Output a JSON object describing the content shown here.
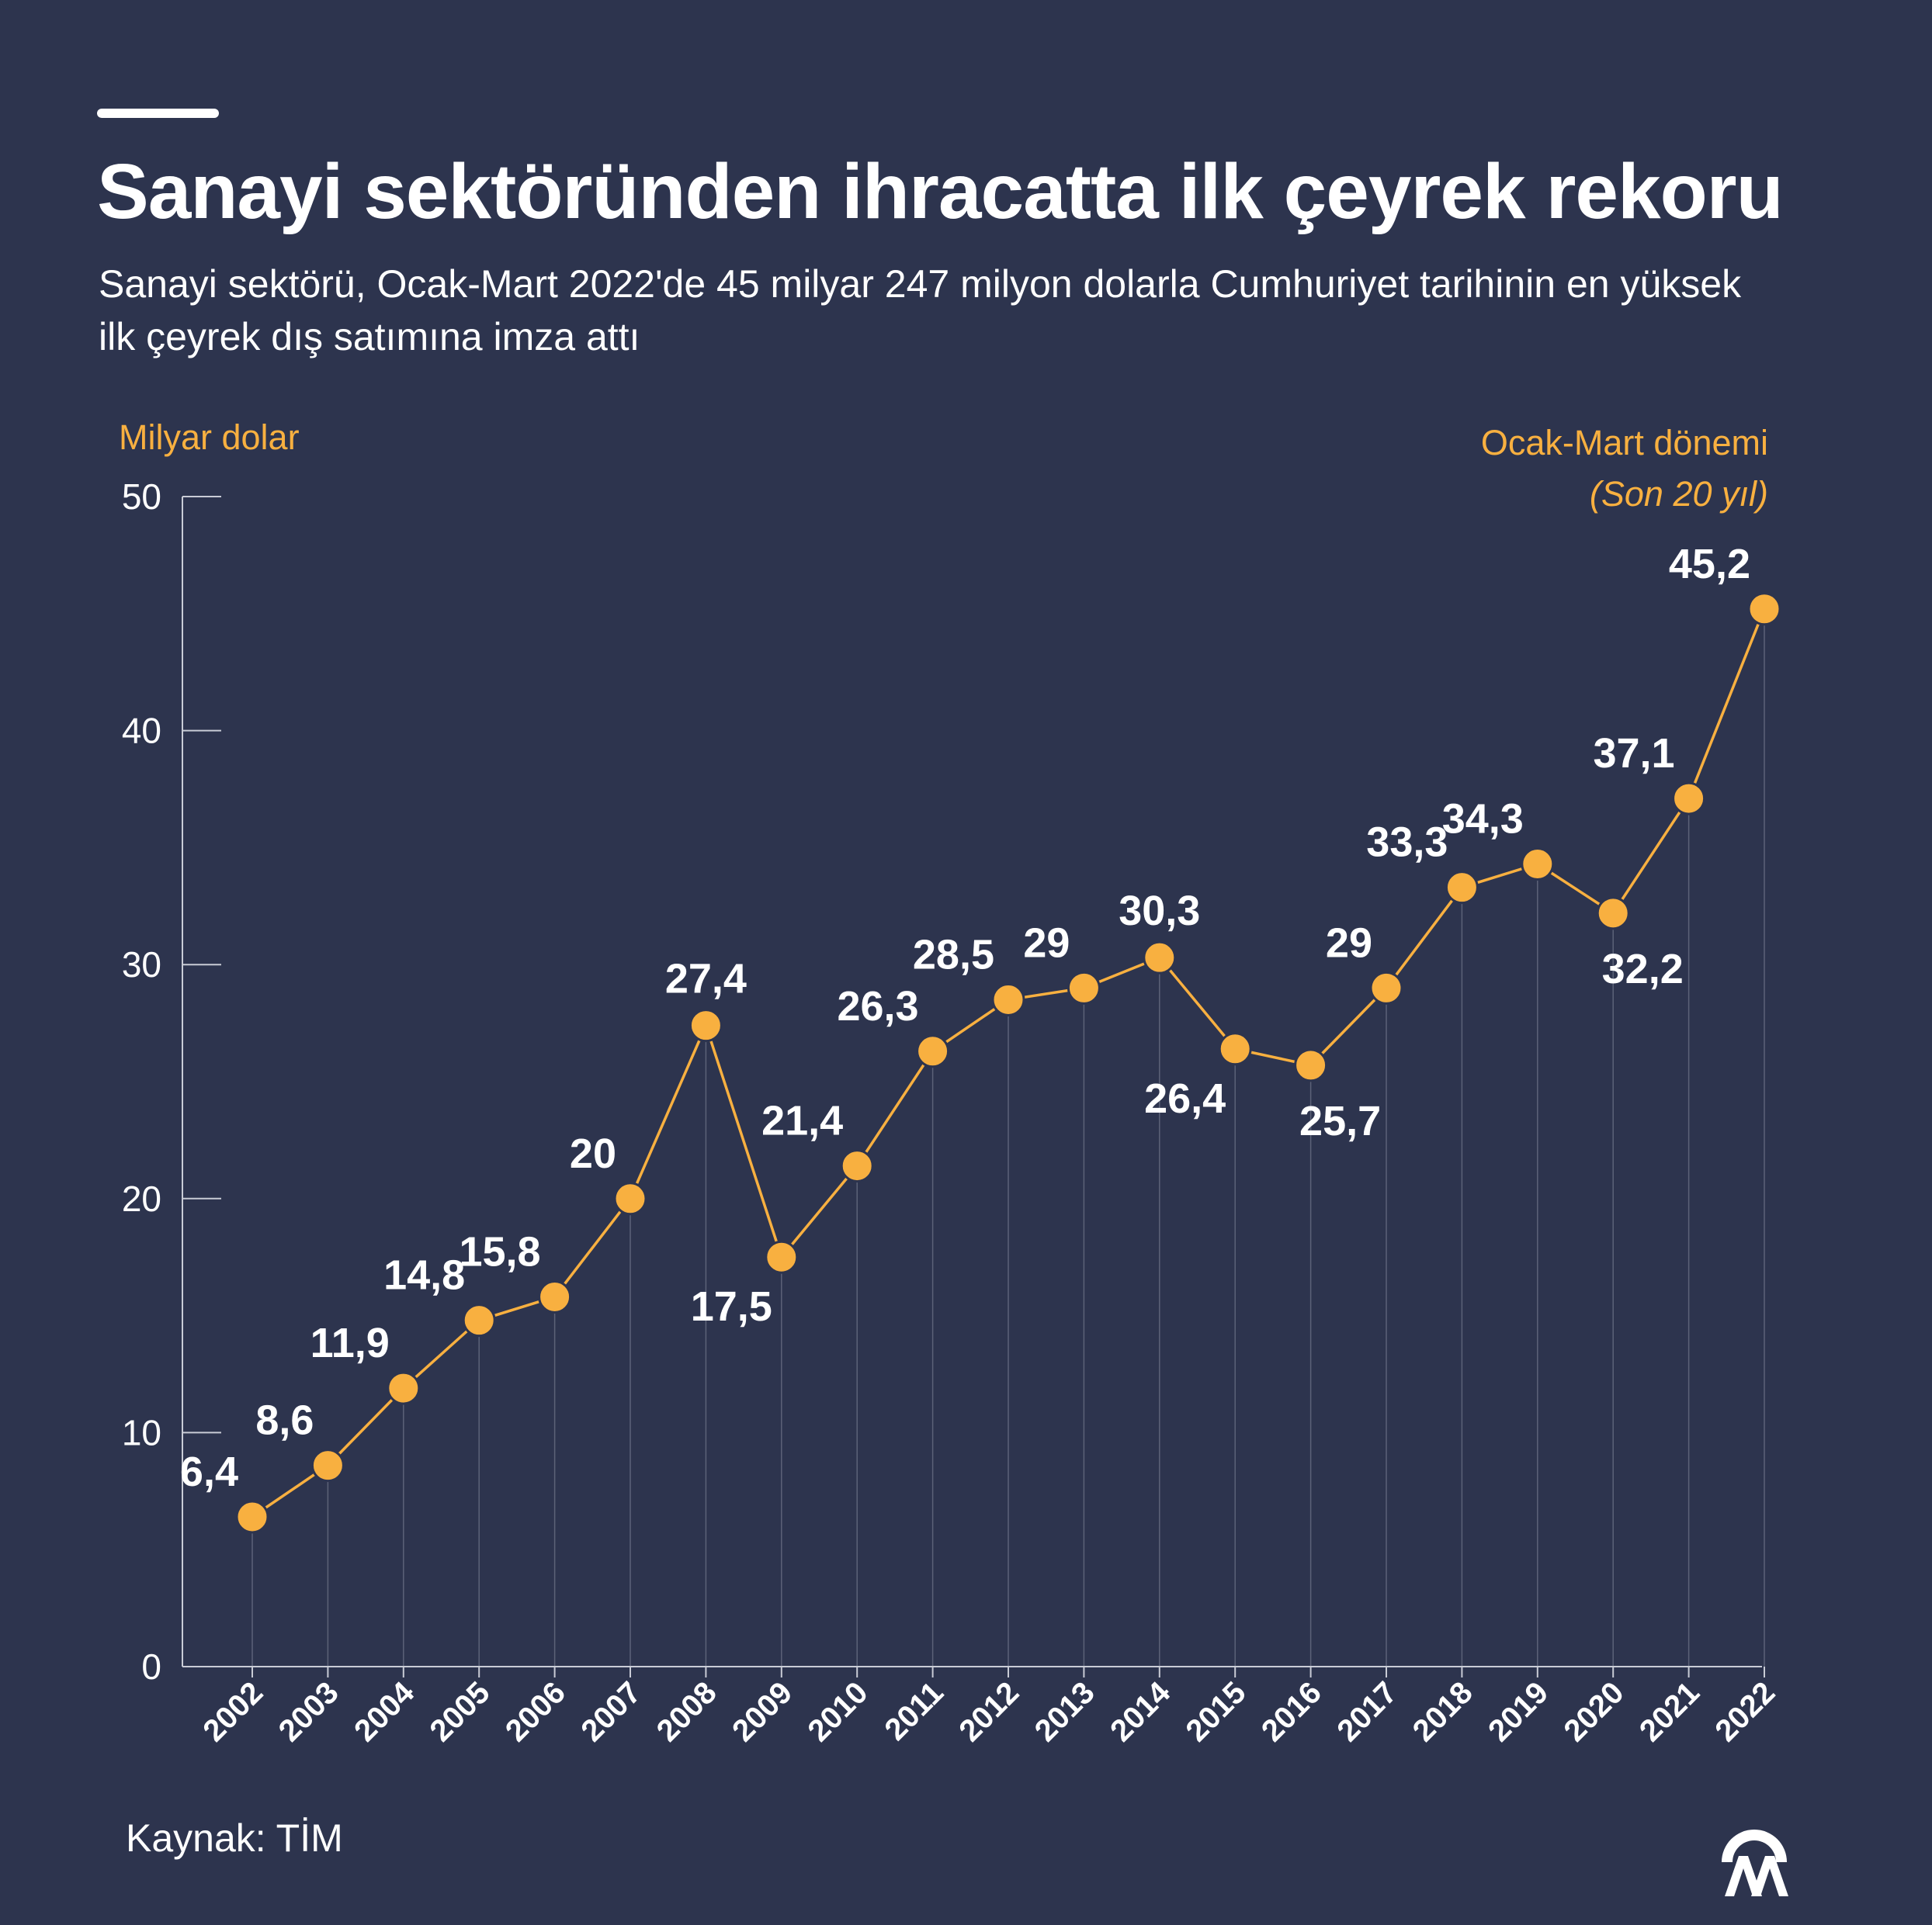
{
  "title": "Sanayi sektöründen ihracatta ilk çeyrek rekoru",
  "subtitle": "Sanayi sektörü, Ocak-Mart 2022'de 45 milyar 247 milyon dolarla Cumhuriyet tarihinin en yüksek ilk çeyrek dış satımına imza attı",
  "unit_label": "Milyar dolar",
  "period_label": "Ocak-Mart dönemi",
  "period_sublabel": "(Son 20 yıl)",
  "source": "Kaynak: TİM",
  "logo": "aa-logo-icon",
  "colors": {
    "background": "#2d344e",
    "accent": "#f8b040",
    "text": "#ffffff",
    "axis": "#c9ccd6",
    "gridline": "#5c6278"
  },
  "chart_data": {
    "type": "line",
    "title": "Sanayi sektöründen ihracatta ilk çeyrek rekoru",
    "xlabel": "",
    "ylabel": "Milyar dolar",
    "ylim": [
      0,
      50
    ],
    "yticks": [
      0,
      10,
      20,
      30,
      40,
      50
    ],
    "grid": "vertical drop lines at each point",
    "categories": [
      "2002",
      "2003",
      "2004",
      "2005",
      "2006",
      "2007",
      "2008",
      "2009",
      "2010",
      "2011",
      "2012",
      "2013",
      "2014",
      "2015",
      "2016",
      "2017",
      "2018",
      "2019",
      "2020",
      "2021",
      "2022"
    ],
    "values": [
      6.4,
      8.6,
      11.9,
      14.8,
      15.8,
      20,
      27.4,
      17.5,
      21.4,
      26.3,
      28.5,
      29,
      30.3,
      26.4,
      25.7,
      29,
      33.3,
      34.3,
      32.2,
      37.1,
      45.2
    ],
    "value_labels": [
      "6,4",
      "8,6",
      "11,9",
      "14,8",
      "15,8",
      "20",
      "27,4",
      "17,5",
      "21,4",
      "26,3",
      "28,5",
      "29",
      "30,3",
      "26,4",
      "25,7",
      "29",
      "33,3",
      "34,3",
      "32,2",
      "37,1",
      "45,2"
    ],
    "label_positions": [
      "above-left",
      "above-left",
      "above-left",
      "above-left",
      "above-left",
      "above-left",
      "above",
      "below-left",
      "above-left",
      "above-left",
      "above-left",
      "above-left",
      "above",
      "below-left",
      "below",
      "above-left",
      "above-left",
      "above-left",
      "below",
      "above-left",
      "above-left"
    ]
  }
}
